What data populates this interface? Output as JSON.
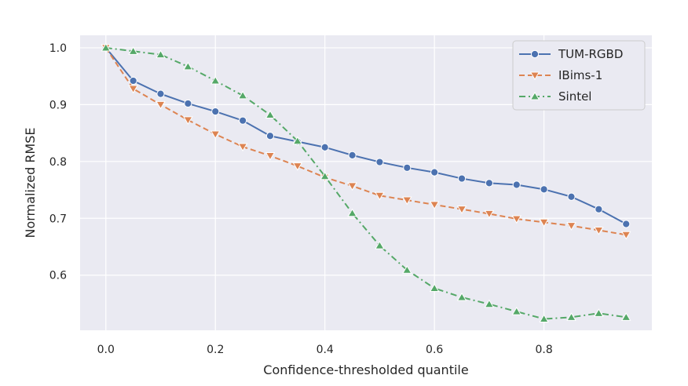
{
  "chart_data": {
    "type": "line",
    "title": "",
    "xlabel": "Confidence-thresholded quantile",
    "ylabel": "Normalized RMSE",
    "xlim": [
      -0.047,
      0.997
    ],
    "ylim": [
      0.503,
      1.022
    ],
    "xticks": [
      0.0,
      0.2,
      0.4,
      0.6,
      0.8
    ],
    "xtick_labels": [
      "0.0",
      "0.2",
      "0.4",
      "0.6",
      "0.8"
    ],
    "yticks": [
      0.6,
      0.7,
      0.8,
      0.9,
      1.0
    ],
    "ytick_labels": [
      "0.6",
      "0.7",
      "0.8",
      "0.9",
      "1.0"
    ],
    "grid": true,
    "legend_position": "top-right",
    "x": [
      0.0,
      0.05,
      0.1,
      0.15,
      0.2,
      0.25,
      0.3,
      0.35,
      0.4,
      0.45,
      0.5,
      0.55,
      0.6,
      0.65,
      0.7,
      0.75,
      0.8,
      0.85,
      0.9,
      0.95
    ],
    "series": [
      {
        "name": "TUM-RGBD",
        "color": "#4c72b0",
        "linestyle": "solid",
        "marker": "circle",
        "values": [
          1.0,
          0.942,
          0.919,
          0.902,
          0.888,
          0.872,
          0.845,
          0.835,
          0.825,
          0.811,
          0.799,
          0.789,
          0.781,
          0.77,
          0.762,
          0.759,
          0.751,
          0.738,
          0.716,
          0.69
        ]
      },
      {
        "name": "IBims-1",
        "color": "#dd8452",
        "linestyle": "dashed",
        "marker": "triangle-down",
        "values": [
          1.0,
          0.928,
          0.9,
          0.873,
          0.848,
          0.826,
          0.81,
          0.792,
          0.772,
          0.757,
          0.74,
          0.732,
          0.724,
          0.716,
          0.708,
          0.699,
          0.693,
          0.687,
          0.679,
          0.671
        ]
      },
      {
        "name": "Sintel",
        "color": "#55a868",
        "linestyle": "dashdot",
        "marker": "triangle-up",
        "values": [
          1.0,
          0.994,
          0.988,
          0.967,
          0.942,
          0.916,
          0.882,
          0.836,
          0.774,
          0.709,
          0.652,
          0.609,
          0.577,
          0.561,
          0.549,
          0.536,
          0.523,
          0.526,
          0.533,
          0.526
        ]
      }
    ]
  }
}
